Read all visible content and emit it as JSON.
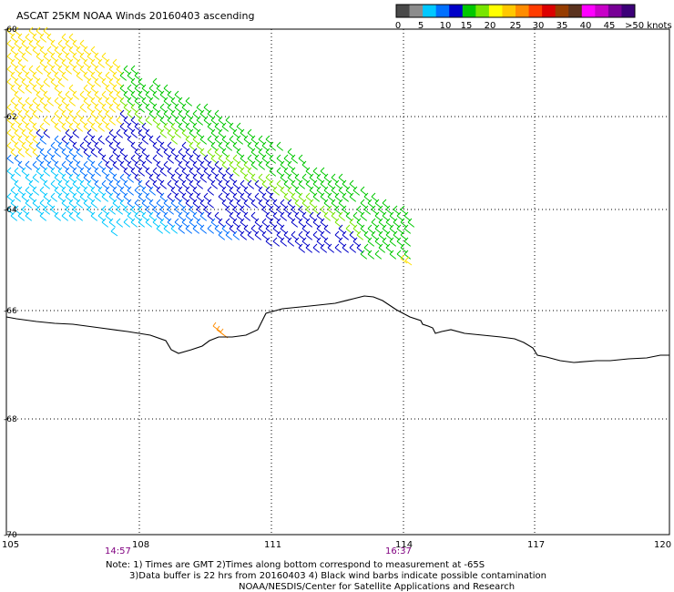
{
  "title": "ASCAT 25KM NOAA Winds 20160403 ascending",
  "colorbar": {
    "colors": [
      "#4a4a4a",
      "#8c8c8c",
      "#00c8ff",
      "#0070ff",
      "#0000c8",
      "#00c800",
      "#78e600",
      "#ffff00",
      "#ffc800",
      "#ff8c00",
      "#ff3c00",
      "#dc0000",
      "#963c00",
      "#5a321e",
      "#ff00ff",
      "#c800c8",
      "#780096",
      "#3c0078"
    ],
    "labels": [
      "0",
      "5",
      "10",
      "15",
      "20",
      "25",
      "30",
      "35",
      "40",
      "45",
      ">50 knots"
    ]
  },
  "lon_labels": [
    "105",
    "108",
    "111",
    "114",
    "117",
    "120"
  ],
  "lat_labels": [
    "-60",
    "-62",
    "-64",
    "-66",
    "-68",
    "-70"
  ],
  "time_labels": [
    "14:57",
    "16:37"
  ],
  "notes": [
    "Note: 1) Times are GMT 2)Times along bottom correspond to measurement at -65S",
    "3)Data buffer is 22 hrs from 20160403 4) Black wind barbs indicate possible contamination",
    "NOAA/NESDIS/Center for Satellite Applications and Research"
  ],
  "map_colors": {
    "coast": "#000000",
    "grid": "#000000",
    "time_text": "#800080"
  }
}
